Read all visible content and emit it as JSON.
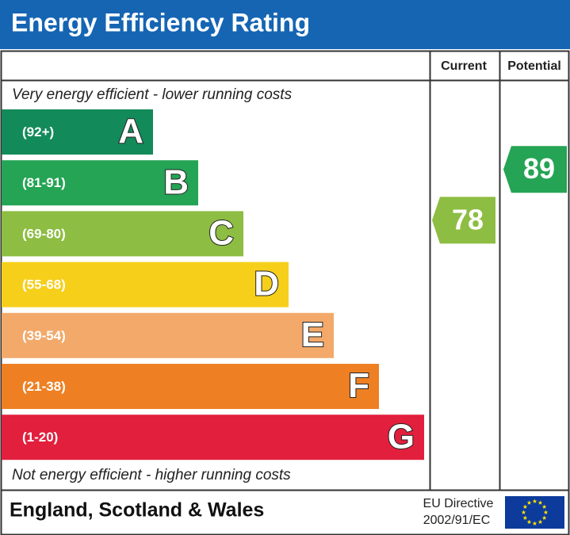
{
  "header": {
    "title": "Energy Efficiency Rating"
  },
  "columns": {
    "current": "Current",
    "potential": "Potential"
  },
  "top_note": "Very energy efficient - lower running costs",
  "bottom_note": "Not energy efficient - higher running costs",
  "bands": [
    {
      "letter": "A",
      "range": "(92+)",
      "color": "#138a5a"
    },
    {
      "letter": "B",
      "range": "(81-91)",
      "color": "#24a454"
    },
    {
      "letter": "C",
      "range": "(69-80)",
      "color": "#8dbd42"
    },
    {
      "letter": "D",
      "range": "(55-68)",
      "color": "#f6cf1a"
    },
    {
      "letter": "E",
      "range": "(39-54)",
      "color": "#f2a96a"
    },
    {
      "letter": "F",
      "range": "(21-38)",
      "color": "#ee8023"
    },
    {
      "letter": "G",
      "range": "(1-20)",
      "color": "#e21f3d"
    }
  ],
  "current": {
    "value": 78
  },
  "potential": {
    "value": 89
  },
  "footer": {
    "region": "England, Scotland & Wales",
    "directive_line1": "EU Directive",
    "directive_line2": "2002/91/EC"
  }
}
